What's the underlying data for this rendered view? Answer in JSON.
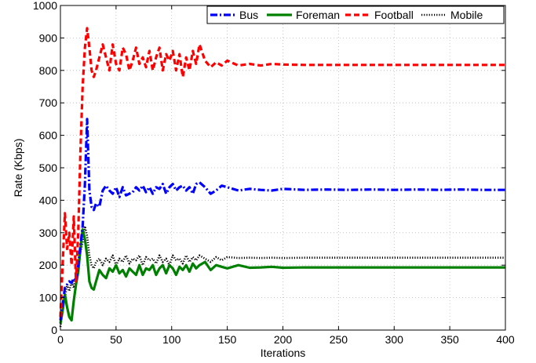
{
  "chart_data": {
    "type": "line",
    "title": "",
    "xlabel": "Iterations",
    "ylabel": "Rate (Kbps)",
    "xlim": [
      0,
      400
    ],
    "ylim": [
      0,
      1000
    ],
    "xticks": [
      0,
      50,
      100,
      150,
      200,
      250,
      300,
      350,
      400
    ],
    "yticks": [
      0,
      100,
      200,
      300,
      400,
      500,
      600,
      700,
      800,
      900,
      1000
    ],
    "grid": true,
    "legend_position": "top-right",
    "series": [
      {
        "name": "Bus",
        "color": "#0000ff",
        "style": "dashdot",
        "x": [
          0,
          2,
          4,
          6,
          8,
          10,
          12,
          14,
          16,
          18,
          20,
          22,
          24,
          26,
          28,
          30,
          32,
          35,
          38,
          41,
          44,
          47,
          50,
          53,
          56,
          59,
          62,
          65,
          68,
          71,
          74,
          77,
          80,
          83,
          86,
          89,
          92,
          95,
          98,
          101,
          104,
          107,
          110,
          113,
          116,
          119,
          122,
          125,
          130,
          135,
          140,
          145,
          150,
          160,
          170,
          180,
          190,
          200,
          220,
          240,
          260,
          280,
          300,
          320,
          340,
          360,
          380,
          400
        ],
        "values": [
          30,
          80,
          130,
          140,
          150,
          145,
          160,
          150,
          200,
          260,
          320,
          450,
          650,
          430,
          380,
          370,
          390,
          380,
          430,
          445,
          430,
          420,
          440,
          410,
          440,
          415,
          420,
          425,
          440,
          430,
          445,
          425,
          440,
          420,
          440,
          435,
          450,
          420,
          440,
          450,
          430,
          440,
          445,
          430,
          440,
          420,
          450,
          455,
          440,
          420,
          430,
          445,
          440,
          430,
          435,
          432,
          430,
          435,
          432,
          433,
          432,
          433,
          432,
          433,
          432,
          433,
          432,
          432
        ]
      },
      {
        "name": "Foreman",
        "color": "#008000",
        "style": "solid",
        "x": [
          0,
          2,
          4,
          6,
          8,
          10,
          12,
          14,
          16,
          18,
          20,
          22,
          24,
          26,
          28,
          30,
          32,
          35,
          38,
          41,
          44,
          47,
          50,
          53,
          56,
          59,
          62,
          65,
          68,
          71,
          74,
          77,
          80,
          83,
          86,
          89,
          92,
          95,
          98,
          101,
          104,
          107,
          110,
          113,
          116,
          119,
          122,
          125,
          130,
          135,
          140,
          145,
          150,
          160,
          170,
          180,
          190,
          200,
          220,
          240,
          260,
          280,
          300,
          320,
          340,
          360,
          380,
          400
        ],
        "values": [
          20,
          60,
          110,
          70,
          40,
          30,
          90,
          140,
          180,
          250,
          310,
          280,
          230,
          150,
          130,
          125,
          150,
          185,
          170,
          160,
          190,
          180,
          200,
          175,
          185,
          165,
          190,
          180,
          170,
          200,
          170,
          190,
          185,
          200,
          170,
          190,
          200,
          175,
          200,
          190,
          170,
          195,
          185,
          200,
          180,
          205,
          190,
          200,
          210,
          185,
          200,
          195,
          190,
          200,
          192,
          193,
          195,
          192,
          193,
          193,
          193,
          193,
          193,
          193,
          193,
          193,
          193,
          193
        ]
      },
      {
        "name": "Football",
        "color": "#ff0000",
        "style": "dashed",
        "x": [
          0,
          2,
          4,
          6,
          8,
          10,
          12,
          14,
          16,
          18,
          20,
          22,
          24,
          26,
          28,
          30,
          32,
          35,
          38,
          41,
          44,
          47,
          50,
          53,
          56,
          59,
          62,
          65,
          68,
          71,
          74,
          77,
          80,
          83,
          86,
          89,
          92,
          95,
          98,
          101,
          104,
          107,
          110,
          113,
          116,
          119,
          122,
          125,
          130,
          135,
          140,
          145,
          150,
          160,
          170,
          180,
          190,
          200,
          220,
          240,
          260,
          280,
          300,
          320,
          340,
          360,
          380,
          400
        ],
        "values": [
          40,
          200,
          360,
          250,
          300,
          200,
          350,
          150,
          300,
          550,
          750,
          870,
          930,
          870,
          800,
          780,
          800,
          840,
          880,
          840,
          800,
          880,
          820,
          800,
          870,
          850,
          800,
          830,
          870,
          820,
          840,
          810,
          860,
          800,
          840,
          870,
          800,
          850,
          830,
          860,
          800,
          850,
          780,
          840,
          800,
          860,
          820,
          880,
          830,
          810,
          825,
          815,
          830,
          815,
          820,
          815,
          820,
          818,
          817,
          817,
          817,
          817,
          817,
          817,
          817,
          817,
          817,
          817
        ]
      },
      {
        "name": "Mobile",
        "color": "#000000",
        "style": "dotted",
        "x": [
          0,
          2,
          4,
          6,
          8,
          10,
          12,
          14,
          16,
          18,
          20,
          22,
          24,
          26,
          28,
          30,
          32,
          35,
          38,
          41,
          44,
          47,
          50,
          53,
          56,
          59,
          62,
          65,
          68,
          71,
          74,
          77,
          80,
          83,
          86,
          89,
          92,
          95,
          98,
          101,
          104,
          107,
          110,
          113,
          116,
          119,
          122,
          125,
          130,
          135,
          140,
          145,
          150,
          160,
          170,
          180,
          190,
          200,
          220,
          240,
          260,
          280,
          300,
          320,
          340,
          360,
          380,
          400
        ],
        "values": [
          10,
          60,
          100,
          140,
          120,
          150,
          130,
          170,
          200,
          240,
          270,
          320,
          290,
          230,
          200,
          190,
          210,
          220,
          200,
          220,
          210,
          230,
          200,
          220,
          210,
          230,
          205,
          220,
          215,
          230,
          200,
          225,
          215,
          220,
          205,
          230,
          210,
          220,
          200,
          230,
          215,
          220,
          205,
          230,
          210,
          225,
          215,
          230,
          220,
          210,
          225,
          215,
          225,
          222,
          223,
          222,
          223,
          222,
          223,
          223,
          223,
          223,
          223,
          223,
          223,
          223,
          223,
          223
        ]
      }
    ]
  }
}
